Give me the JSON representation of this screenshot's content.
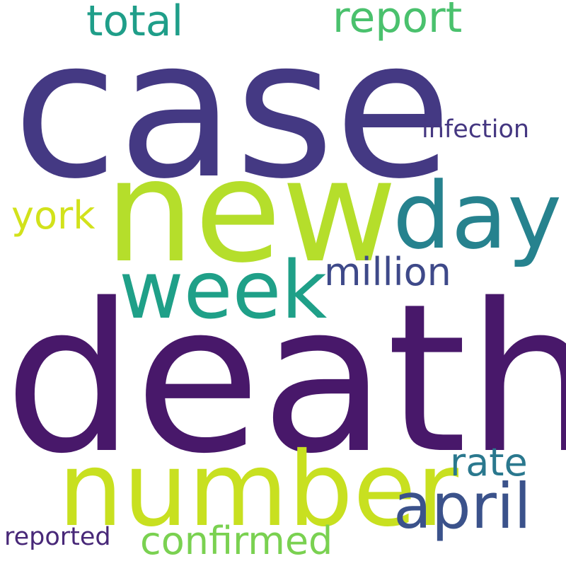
{
  "word_cloud": {
    "background": "#ffffff",
    "words": [
      {
        "key": "case",
        "text": "case",
        "color": "#443983"
      },
      {
        "key": "death",
        "text": "death",
        "color": "#48186a"
      },
      {
        "key": "new",
        "text": "new",
        "color": "#b5de2b"
      },
      {
        "key": "number",
        "text": "number",
        "color": "#c8e020"
      },
      {
        "key": "day",
        "text": "day",
        "color": "#26828e"
      },
      {
        "key": "week",
        "text": "week",
        "color": "#1fa088"
      },
      {
        "key": "april",
        "text": "april",
        "color": "#3b528b"
      },
      {
        "key": "report",
        "text": "report",
        "color": "#4ac16d"
      },
      {
        "key": "total",
        "text": "total",
        "color": "#1f9e89"
      },
      {
        "key": "million",
        "text": "million",
        "color": "#3e4989"
      },
      {
        "key": "confirmed",
        "text": "confirmed",
        "color": "#7ad151"
      },
      {
        "key": "rate",
        "text": "rate",
        "color": "#2a788e"
      },
      {
        "key": "york",
        "text": "york",
        "color": "#d2e21b"
      },
      {
        "key": "infection",
        "text": "infection",
        "color": "#453781"
      },
      {
        "key": "reported",
        "text": "reported",
        "color": "#482878"
      }
    ]
  }
}
